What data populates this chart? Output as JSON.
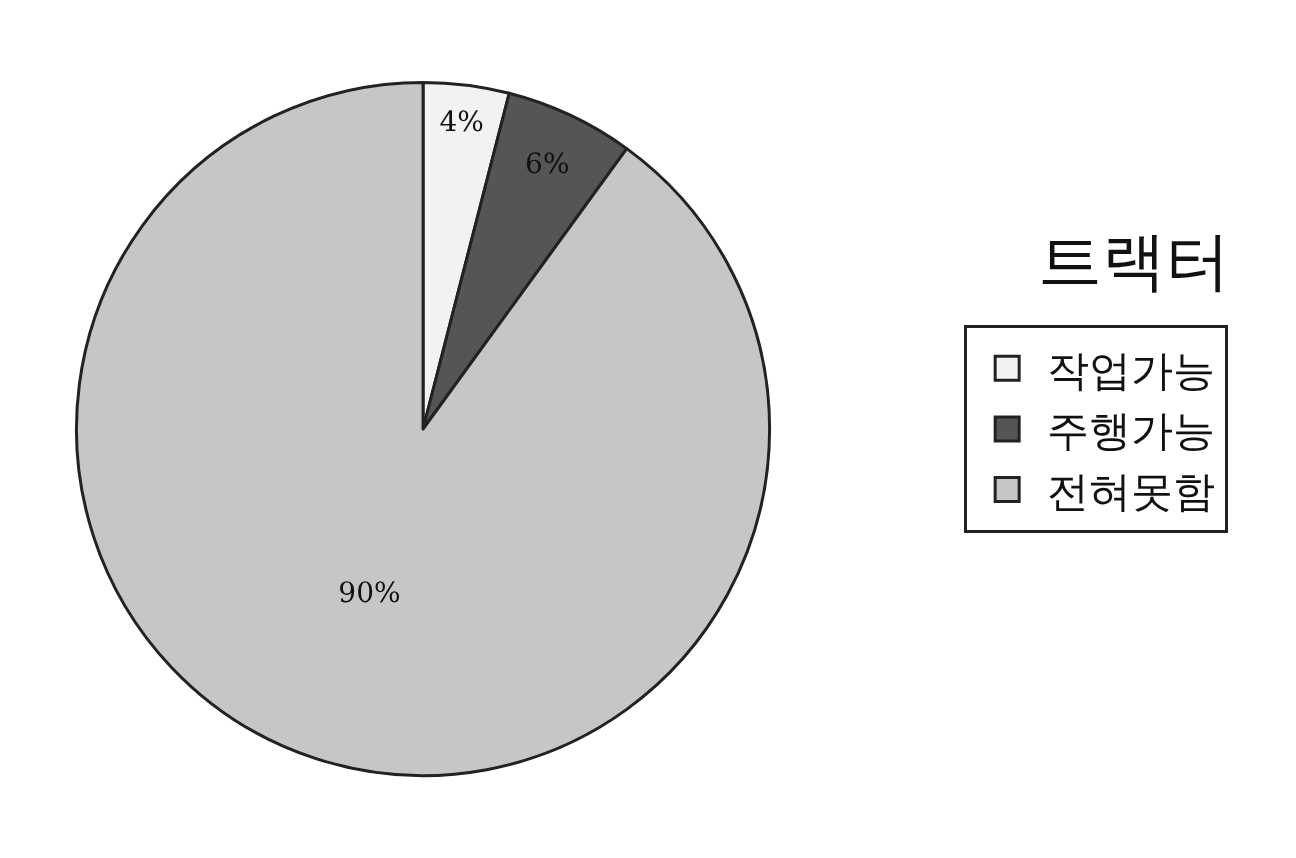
{
  "chart_data": {
    "type": "pie",
    "title": "트랙터",
    "categories": [
      "작업가능",
      "주행가능",
      "전혀못함"
    ],
    "values": [
      4,
      6,
      90
    ],
    "value_labels": [
      "4%",
      "6%",
      "90%"
    ],
    "colors": [
      "#f2f2f2",
      "#555555",
      "#c6c6c6"
    ],
    "legend": "right"
  }
}
